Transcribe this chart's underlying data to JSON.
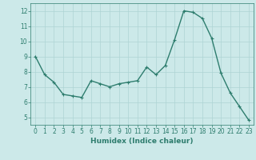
{
  "x": [
    0,
    1,
    2,
    3,
    4,
    5,
    6,
    7,
    8,
    9,
    10,
    11,
    12,
    13,
    14,
    15,
    16,
    17,
    18,
    19,
    20,
    21,
    22,
    23
  ],
  "y": [
    9.0,
    7.8,
    7.3,
    6.5,
    6.4,
    6.3,
    7.4,
    7.2,
    7.0,
    7.2,
    7.3,
    7.4,
    8.3,
    7.8,
    8.4,
    10.1,
    12.0,
    11.9,
    11.5,
    10.2,
    7.9,
    6.6,
    5.7,
    4.8
  ],
  "line_color": "#2e7d6e",
  "marker": "+",
  "marker_size": 3,
  "line_width": 1.0,
  "xlabel": "Humidex (Indice chaleur)",
  "ylabel": "",
  "title": "",
  "bg_color": "#cce9e9",
  "grid_color": "#aed4d4",
  "xlim": [
    -0.5,
    23.5
  ],
  "ylim": [
    4.5,
    12.5
  ],
  "yticks": [
    5,
    6,
    7,
    8,
    9,
    10,
    11,
    12
  ],
  "xticks": [
    0,
    1,
    2,
    3,
    4,
    5,
    6,
    7,
    8,
    9,
    10,
    11,
    12,
    13,
    14,
    15,
    16,
    17,
    18,
    19,
    20,
    21,
    22,
    23
  ],
  "tick_label_fontsize": 5.5,
  "xlabel_fontsize": 6.5
}
